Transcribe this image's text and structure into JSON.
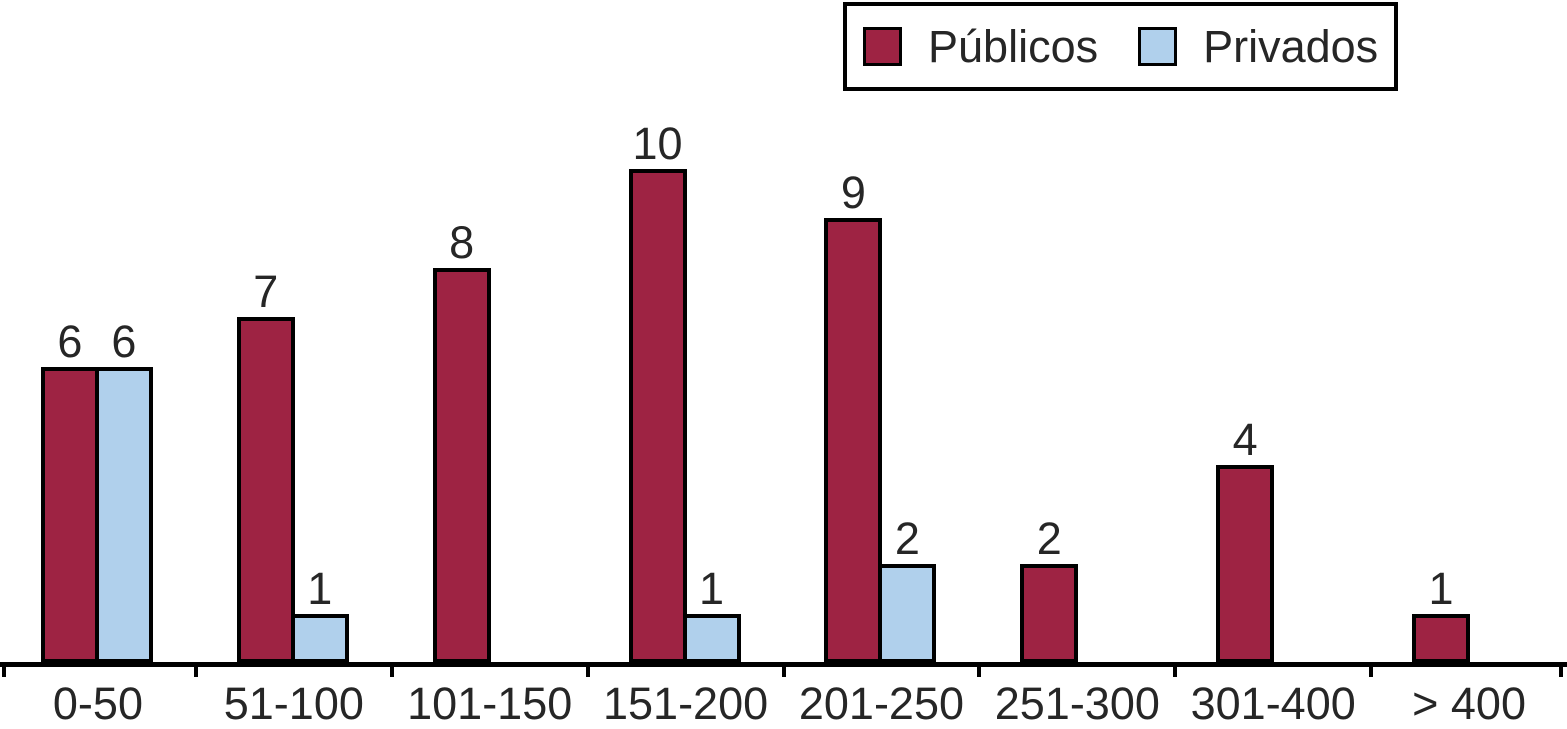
{
  "chart_data": {
    "type": "bar",
    "title": "",
    "xlabel": "",
    "ylabel": "",
    "categories": [
      "0-50",
      "51-100",
      "101-150",
      "151-200",
      "201-250",
      "251-300",
      "301-400",
      "> 400"
    ],
    "series": [
      {
        "name": "Públicos",
        "color": "#9E2343",
        "values": [
          6,
          7,
          8,
          10,
          9,
          2,
          4,
          1
        ]
      },
      {
        "name": "Privados",
        "color": "#B0D0EC",
        "values": [
          6,
          1,
          0,
          1,
          2,
          0,
          0,
          0
        ]
      }
    ],
    "value_labels_shown": true,
    "zero_value_bars_hidden": true,
    "legend_position": "top-right",
    "grid": false,
    "y_axis_visible": false,
    "ylim": [
      0,
      10.5
    ],
    "axis_color": "#000000",
    "bar_border_color": "#000000",
    "text_color": "#262626",
    "background_color": "#ffffff"
  }
}
